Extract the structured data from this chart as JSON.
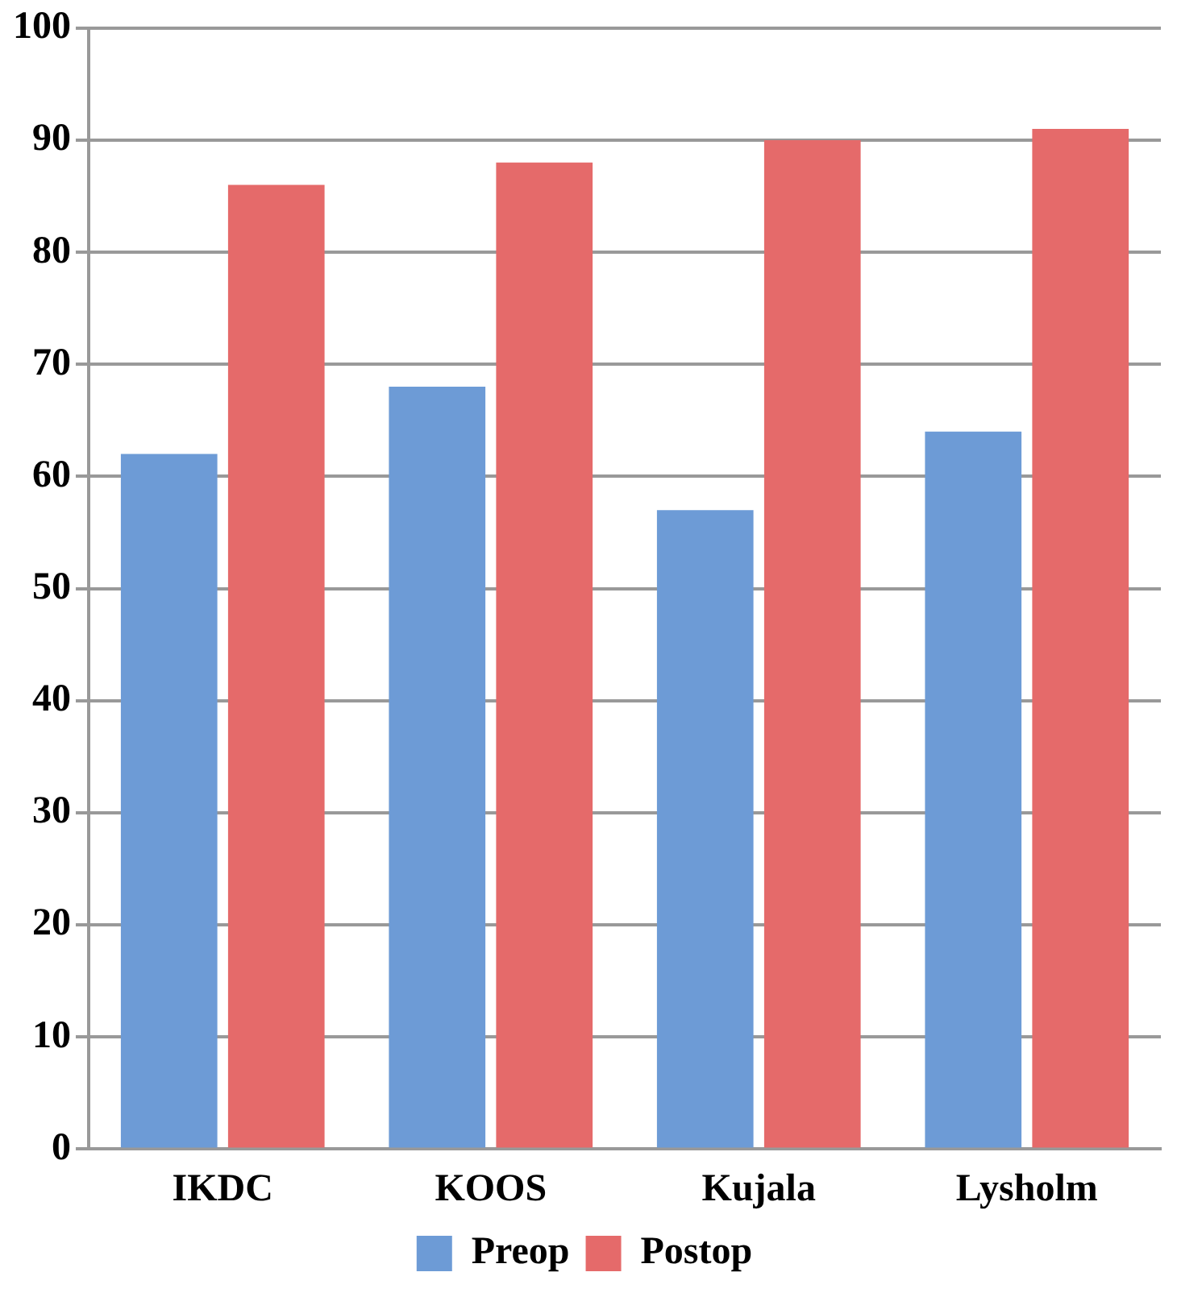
{
  "chart_data": {
    "type": "bar",
    "categories": [
      "IKDC",
      "KOOS",
      "Kujala",
      "Lysholm"
    ],
    "series": [
      {
        "name": "Preop",
        "color": "#6d9bd6",
        "values": [
          62,
          68,
          57,
          64
        ]
      },
      {
        "name": "Postop",
        "color": "#e56a6a",
        "values": [
          86,
          88,
          90,
          91
        ]
      }
    ],
    "ylim": [
      0,
      100
    ],
    "yticks": [
      0,
      10,
      20,
      30,
      40,
      50,
      60,
      70,
      80,
      90,
      100
    ],
    "grid": "y",
    "legend": "bottom"
  }
}
